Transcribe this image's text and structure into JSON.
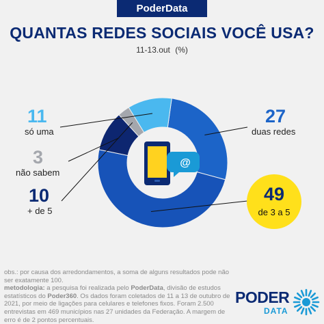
{
  "brand": "PoderData",
  "chart_data": {
    "type": "pie",
    "title": "QUANTAS REDES SOCIAIS VOCÊ USA?",
    "subtitle_date": "11-13.out",
    "subtitle_unit": "(%)",
    "categories": [
      "duas redes",
      "de 3 a 5",
      "+ de 5",
      "não sabem",
      "só uma"
    ],
    "values": [
      27,
      49,
      10,
      3,
      11
    ],
    "colors": [
      "#1c64c8",
      "#1753b8",
      "#0d2670",
      "#a4a7ad",
      "#4ab8ef"
    ],
    "labels": [
      {
        "value": "11",
        "text": "só uma"
      },
      {
        "value": "27",
        "text": "duas redes"
      },
      {
        "value": "3",
        "text": "não sabem"
      },
      {
        "value": "10",
        "text": "+ de 5"
      },
      {
        "value": "49",
        "text": "de 3 a 5"
      }
    ],
    "center_icon": "smartphone-at-icon",
    "center_icon_text": "@"
  },
  "notes": {
    "obs": "obs.: por causa dos arredondamentos, a soma de alguns resultados pode não ser exatamente 100.",
    "metodologia_label": "metodologia:",
    "metodologia_1": " a pesquisa foi realizada pelo ",
    "poderdata": "PoderData",
    "metodologia_2": ", divisão de estudos estatísticos do ",
    "poder360": "Poder360",
    "metodologia_3": ". Os dados foram coletados de 11 a 13 de outubro de 2021, por meio de ligações para celulares e telefones fixos. Foram 2.500 entrevistas em 469 municípios nas 27 unidades da Federação. A margem de erro é de 2 pontos percentuais."
  },
  "logo": {
    "top": "PODER",
    "bottom": "DATA",
    "icon": "poderdata-sun-icon"
  },
  "colors": {
    "navy": "#0b2a73",
    "light_blue": "#4ab8ef",
    "gray": "#a4a7ad",
    "yellow": "#ffe01b"
  }
}
